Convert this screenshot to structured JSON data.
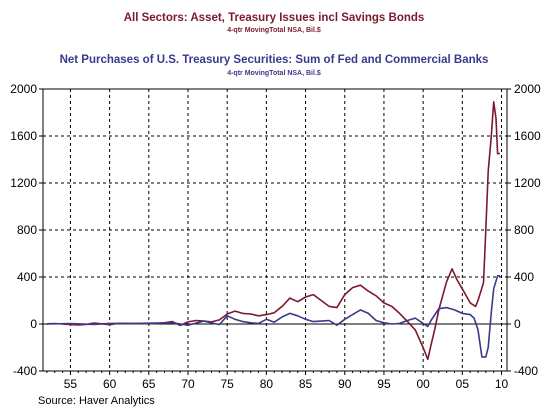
{
  "chart_data": {
    "type": "line",
    "title_1": "All Sectors: Asset, Treasury Issues incl Savings Bonds",
    "subtitle_1": "4-qtr MovingTotal     NSA, Bil.$",
    "title_2": "Net Purchases of U.S. Treasury Securities: Sum of Fed and Commercial Banks",
    "subtitle_2": "4-qtr MovingTotal     NSA, Bil.$",
    "source": "Source: Haver Analytics",
    "xlim": [
      1951.5,
      2010.7
    ],
    "ylim": [
      -400,
      2000
    ],
    "x_ticks": [
      1955,
      1960,
      1965,
      1970,
      1975,
      1980,
      1985,
      1990,
      1995,
      2000,
      2005,
      2010
    ],
    "x_tick_labels": [
      "55",
      "60",
      "65",
      "70",
      "75",
      "80",
      "85",
      "90",
      "95",
      "00",
      "05",
      "10"
    ],
    "y_ticks": [
      -400,
      0,
      400,
      800,
      1200,
      1600,
      2000
    ],
    "y_tick_labels": [
      "-400",
      "0",
      "400",
      "800",
      "1200",
      "1600",
      "2000"
    ],
    "grid": true,
    "series": [
      {
        "name": "All Sectors: Asset, Treasury Issues incl Savings Bonds",
        "color": "#7b1a2e",
        "points": [
          [
            1952,
            2
          ],
          [
            1953,
            4
          ],
          [
            1954,
            0
          ],
          [
            1955,
            -5
          ],
          [
            1956,
            -8
          ],
          [
            1957,
            -3
          ],
          [
            1958,
            8
          ],
          [
            1959,
            2
          ],
          [
            1960,
            -6
          ],
          [
            1961,
            5
          ],
          [
            1962,
            6
          ],
          [
            1963,
            3
          ],
          [
            1964,
            4
          ],
          [
            1965,
            2
          ],
          [
            1966,
            5
          ],
          [
            1967,
            10
          ],
          [
            1968,
            20
          ],
          [
            1969,
            -12
          ],
          [
            1970,
            18
          ],
          [
            1971,
            30
          ],
          [
            1972,
            25
          ],
          [
            1973,
            18
          ],
          [
            1974,
            35
          ],
          [
            1975,
            85
          ],
          [
            1976,
            110
          ],
          [
            1977,
            90
          ],
          [
            1978,
            85
          ],
          [
            1979,
            70
          ],
          [
            1980,
            80
          ],
          [
            1981,
            95
          ],
          [
            1982,
            150
          ],
          [
            1983,
            220
          ],
          [
            1984,
            190
          ],
          [
            1985,
            230
          ],
          [
            1986,
            250
          ],
          [
            1987,
            200
          ],
          [
            1988,
            150
          ],
          [
            1989,
            140
          ],
          [
            1990,
            250
          ],
          [
            1991,
            310
          ],
          [
            1992,
            330
          ],
          [
            1993,
            280
          ],
          [
            1994,
            240
          ],
          [
            1995,
            180
          ],
          [
            1996,
            150
          ],
          [
            1997,
            90
          ],
          [
            1998,
            20
          ],
          [
            1999,
            -50
          ],
          [
            2000,
            -200
          ],
          [
            2000.6,
            -300
          ],
          [
            2001,
            -180
          ],
          [
            2001.5,
            -40
          ],
          [
            2002,
            120
          ],
          [
            2003,
            360
          ],
          [
            2003.7,
            470
          ],
          [
            2004.3,
            380
          ],
          [
            2005,
            300
          ],
          [
            2006,
            180
          ],
          [
            2006.7,
            150
          ],
          [
            2007,
            200
          ],
          [
            2007.7,
            350
          ],
          [
            2008,
            800
          ],
          [
            2008.3,
            1300
          ],
          [
            2008.7,
            1600
          ],
          [
            2009,
            1890
          ],
          [
            2009.3,
            1750
          ],
          [
            2009.5,
            1450
          ],
          [
            2009.8,
            1450
          ]
        ]
      },
      {
        "name": "Net Purchases of U.S. Treasury Securities: Sum of Fed and Commercial Banks",
        "color": "#3a3a8c",
        "points": [
          [
            1952,
            0
          ],
          [
            1955,
            3
          ],
          [
            1958,
            -3
          ],
          [
            1960,
            5
          ],
          [
            1963,
            5
          ],
          [
            1966,
            8
          ],
          [
            1968,
            10
          ],
          [
            1970,
            -10
          ],
          [
            1972,
            25
          ],
          [
            1974,
            -5
          ],
          [
            1975,
            70
          ],
          [
            1976,
            40
          ],
          [
            1977,
            20
          ],
          [
            1978,
            10
          ],
          [
            1979,
            5
          ],
          [
            1980,
            40
          ],
          [
            1981,
            15
          ],
          [
            1982,
            60
          ],
          [
            1983,
            90
          ],
          [
            1984,
            70
          ],
          [
            1985,
            40
          ],
          [
            1986,
            20
          ],
          [
            1987,
            25
          ],
          [
            1988,
            30
          ],
          [
            1989,
            -10
          ],
          [
            1990,
            40
          ],
          [
            1991,
            80
          ],
          [
            1992,
            120
          ],
          [
            1993,
            90
          ],
          [
            1994,
            30
          ],
          [
            1995,
            10
          ],
          [
            1996,
            0
          ],
          [
            1997,
            5
          ],
          [
            1998,
            30
          ],
          [
            1999,
            50
          ],
          [
            2000,
            5
          ],
          [
            2000.6,
            -20
          ],
          [
            2001,
            30
          ],
          [
            2002,
            130
          ],
          [
            2003,
            140
          ],
          [
            2004,
            120
          ],
          [
            2005,
            90
          ],
          [
            2006,
            80
          ],
          [
            2006.5,
            50
          ],
          [
            2007,
            -50
          ],
          [
            2007.5,
            -280
          ],
          [
            2008,
            -280
          ],
          [
            2008.3,
            -200
          ],
          [
            2008.7,
            100
          ],
          [
            2009,
            300
          ],
          [
            2009.5,
            410
          ],
          [
            2009.8,
            410
          ]
        ]
      }
    ]
  },
  "colors": {
    "series_1": "#7b1a2e",
    "series_2": "#3a3a8c",
    "grid": "#000000",
    "background": "#ffffff"
  }
}
